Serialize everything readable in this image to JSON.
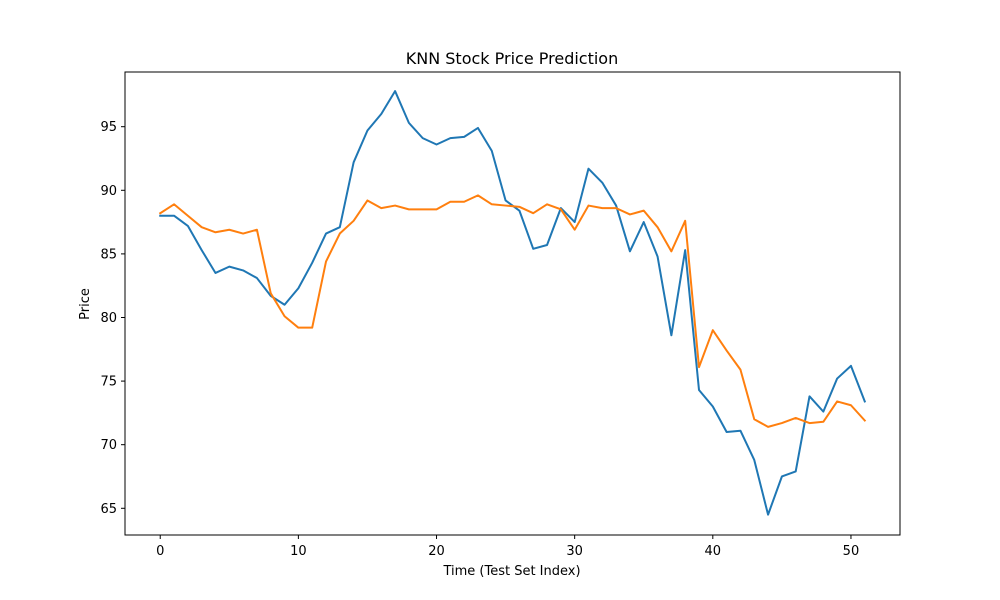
{
  "chart_data": {
    "type": "line",
    "title": "KNN Stock Price Prediction",
    "xlabel": "Time (Test Set Index)",
    "ylabel": "Price",
    "xlim": [
      -2.55,
      53.55
    ],
    "ylim": [
      62.9,
      99.3
    ],
    "xticks": [
      0,
      10,
      20,
      30,
      40,
      50
    ],
    "yticks": [
      65,
      70,
      75,
      80,
      85,
      90,
      95
    ],
    "grid": false,
    "legend": "none",
    "x": [
      0,
      1,
      2,
      3,
      4,
      5,
      6,
      7,
      8,
      9,
      10,
      11,
      12,
      13,
      14,
      15,
      16,
      17,
      18,
      19,
      20,
      21,
      22,
      23,
      24,
      25,
      26,
      27,
      28,
      29,
      30,
      31,
      32,
      33,
      34,
      35,
      36,
      37,
      38,
      39,
      40,
      41,
      42,
      43,
      44,
      45,
      46,
      47,
      48,
      49,
      50,
      51
    ],
    "series": [
      {
        "color": "#1f77b4",
        "values": [
          88.0,
          88.0,
          87.2,
          85.3,
          83.5,
          84.0,
          83.7,
          83.1,
          81.7,
          81.0,
          82.3,
          84.3,
          86.6,
          87.1,
          92.2,
          94.7,
          96.0,
          97.8,
          95.3,
          94.1,
          93.6,
          94.1,
          94.2,
          94.9,
          93.1,
          89.2,
          88.4,
          85.4,
          85.7,
          88.6,
          87.5,
          91.7,
          90.6,
          88.8,
          85.2,
          87.5,
          84.8,
          78.6,
          85.3,
          74.3,
          73.0,
          71.0,
          71.1,
          68.8,
          64.5,
          67.5,
          67.9,
          73.8,
          72.6,
          75.2,
          76.2,
          73.4
        ]
      },
      {
        "color": "#ff7f0e",
        "values": [
          88.2,
          88.9,
          88.0,
          87.1,
          86.7,
          86.9,
          86.6,
          86.9,
          81.9,
          80.1,
          79.2,
          79.2,
          84.4,
          86.6,
          87.6,
          89.2,
          88.6,
          88.8,
          88.5,
          88.5,
          88.5,
          89.1,
          89.1,
          89.6,
          88.9,
          88.8,
          88.7,
          88.2,
          88.9,
          88.5,
          86.9,
          88.8,
          88.6,
          88.6,
          88.1,
          88.4,
          87.1,
          85.2,
          87.6,
          76.1,
          79.0,
          77.4,
          75.9,
          72.0,
          71.4,
          71.7,
          72.1,
          71.7,
          71.8,
          73.4,
          73.1,
          71.9
        ]
      }
    ]
  }
}
